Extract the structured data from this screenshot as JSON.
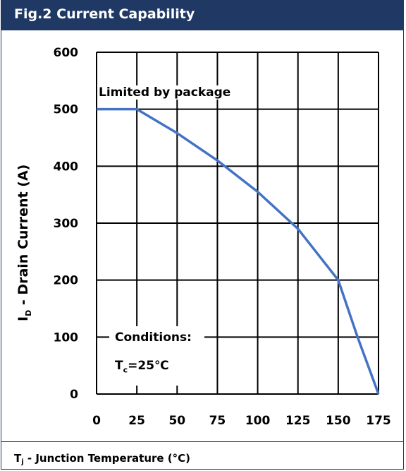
{
  "header": {
    "title": "Fig.2 Current Capability"
  },
  "chart_data": {
    "type": "line",
    "title": "Fig.2 Current Capability",
    "xlabel_prefix": "T",
    "xlabel_sub": "j",
    "xlabel_rest": " - Junction Temperature (°C)",
    "ylabel_prefix": "I",
    "ylabel_sub": "D",
    "ylabel_rest": " - Drain Current (A)",
    "xlim": [
      0,
      175
    ],
    "ylim": [
      0,
      600
    ],
    "xticks": [
      0,
      25,
      50,
      75,
      100,
      125,
      150,
      175
    ],
    "yticks": [
      0,
      100,
      200,
      300,
      400,
      500,
      600
    ],
    "grid": true,
    "series": [
      {
        "color": "#4472c4",
        "x": [
          0,
          25,
          50,
          75,
          100,
          125,
          150,
          162,
          175
        ],
        "y": [
          500,
          500,
          458,
          410,
          355,
          290,
          200,
          100,
          0
        ]
      }
    ],
    "annotations": {
      "limit_label": "Limited by package",
      "conditions_title": "Conditions:",
      "conditions_prefix": "T",
      "conditions_sub": "c",
      "conditions_rest": "=25℃"
    }
  }
}
